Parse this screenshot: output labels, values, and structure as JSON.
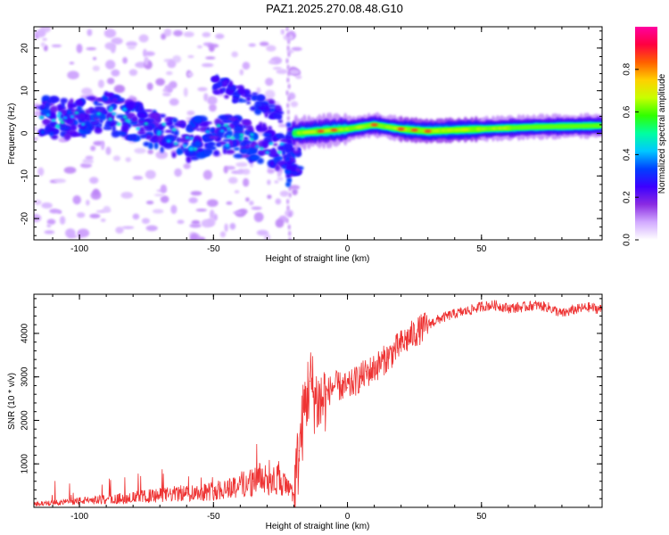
{
  "title": "PAZ1.2025.270.08.48.G10",
  "chart_data": [
    {
      "type": "heatmap",
      "name": "spectrogram",
      "xlabel": "Height of straight line (km)",
      "ylabel": "Frequency (Hz)",
      "xlim": [
        -117,
        95
      ],
      "ylim": [
        -25,
        25
      ],
      "xticks": [
        -100,
        -50,
        0,
        50
      ],
      "xtick_labels": [
        "-100",
        "-50",
        "0",
        "50"
      ],
      "yticks": [
        -20,
        -10,
        0,
        10,
        20
      ],
      "ytick_labels": [
        "-20",
        "-10",
        "0",
        "10",
        "20"
      ],
      "description_points": {
        "low_altitude_signal_x": [
          -115,
          -100,
          -90,
          -80,
          -70,
          -60,
          -50,
          -40,
          -30,
          -22
        ],
        "low_altitude_signal_freq": [
          4,
          3,
          5,
          3,
          0,
          -2,
          0,
          -1,
          -3,
          -5
        ],
        "high_altitude_signal_x": [
          -20,
          -10,
          0,
          10,
          20,
          30,
          50,
          70,
          95
        ],
        "high_altitude_signal_freq": [
          0,
          0.5,
          1,
          2,
          1,
          0.5,
          1,
          1.5,
          1.8
        ],
        "peak_amplitude_near_x": [
          -10,
          -5,
          10,
          20,
          25,
          30
        ]
      },
      "colorbar": {
        "label": "Normalized spectral amplitude",
        "range": [
          0,
          1
        ],
        "ticks": [
          0.0,
          0.2,
          0.4,
          0.6,
          0.8
        ],
        "tick_labels": [
          "0.0",
          "0.2",
          "0.4",
          "0.6",
          "0.8"
        ],
        "colormap": [
          "#ffffff",
          "#d2aaff",
          "#8a2be2",
          "#3c00ff",
          "#0040ff",
          "#00c8ff",
          "#00ffa0",
          "#30ff00",
          "#c8ff00",
          "#ffd000",
          "#ff6000",
          "#ff0040",
          "#ff00a0"
        ]
      }
    },
    {
      "type": "line",
      "name": "snr",
      "xlabel": "Height of straight line (km)",
      "ylabel": "SNR (10 * v/v)",
      "xlim": [
        -117,
        95
      ],
      "ylim": [
        0,
        4900
      ],
      "xticks": [
        -100,
        -50,
        0,
        50
      ],
      "xtick_labels": [
        "-100",
        "-50",
        "0",
        "50"
      ],
      "yticks": [
        1000,
        2000,
        3000,
        4000
      ],
      "ytick_labels": [
        "1000",
        "2000",
        "3000",
        "4000"
      ],
      "color": "#ee3333",
      "series": [
        {
          "name": "SNR",
          "x": [
            -117,
            -110,
            -100,
            -90,
            -80,
            -70,
            -60,
            -50,
            -45,
            -40,
            -35,
            -30,
            -25,
            -22,
            -20,
            -18,
            -16,
            -14,
            -12,
            -10,
            -8,
            -5,
            0,
            5,
            10,
            15,
            20,
            25,
            30,
            35,
            40,
            45,
            50,
            55,
            60,
            65,
            70,
            75,
            80,
            85,
            90,
            95
          ],
          "y": [
            80,
            100,
            150,
            180,
            230,
            280,
            330,
            380,
            450,
            520,
            600,
            700,
            620,
            400,
            300,
            1300,
            2300,
            2900,
            2500,
            2400,
            2600,
            2800,
            2750,
            3000,
            3200,
            3450,
            3750,
            4000,
            4200,
            4350,
            4450,
            4520,
            4620,
            4650,
            4580,
            4600,
            4650,
            4600,
            4450,
            4550,
            4600,
            4550
          ]
        }
      ]
    }
  ]
}
